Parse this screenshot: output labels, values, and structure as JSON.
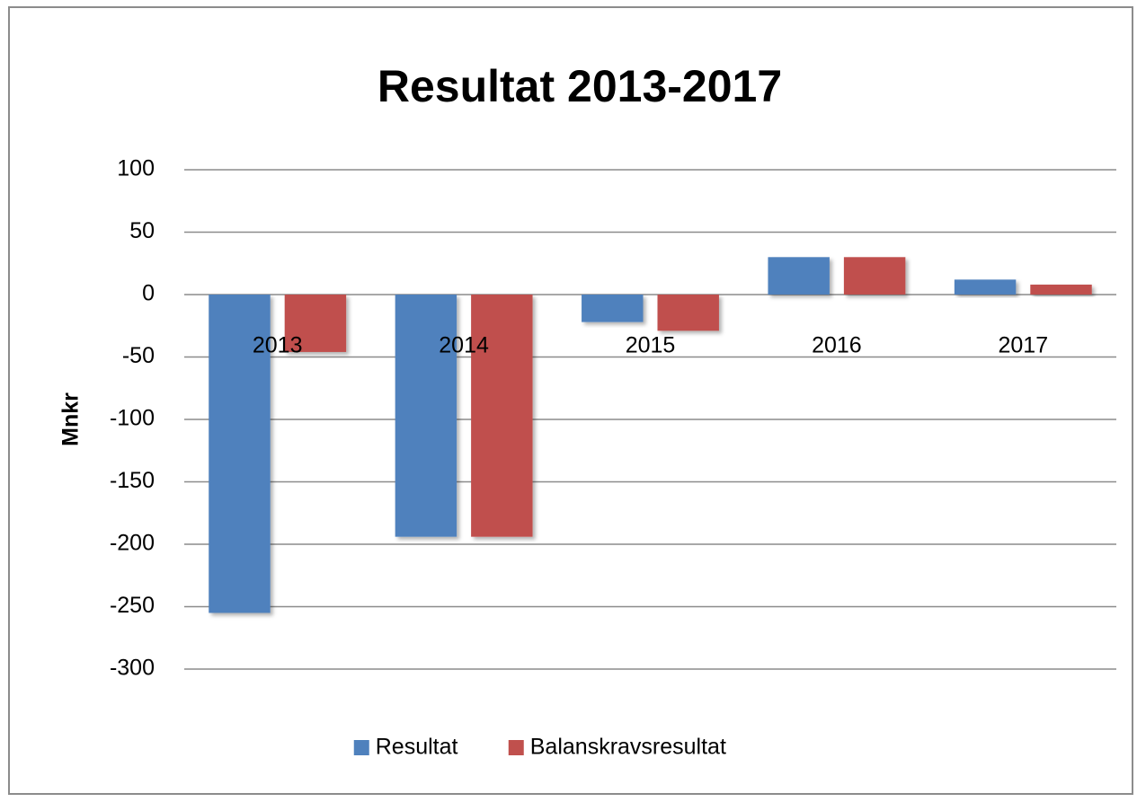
{
  "chart_data": {
    "type": "bar",
    "title": "Resultat 2013-2017",
    "y_label": "Mnkr",
    "categories": [
      "2013",
      "2014",
      "2015",
      "2016",
      "2017"
    ],
    "series": [
      {
        "name": "Resultat",
        "color": "#4f81bd",
        "values": [
          -255,
          -194,
          -22,
          30,
          12
        ]
      },
      {
        "name": "Balanskravsresultat",
        "color": "#c0504d",
        "values": [
          -46,
          -194,
          -29,
          30,
          8
        ]
      }
    ],
    "ylim": [
      -300,
      100
    ],
    "yticks": [
      -300,
      -250,
      -200,
      -150,
      -100,
      -50,
      0,
      50,
      100
    ],
    "grid": true,
    "legend": "bottom"
  }
}
